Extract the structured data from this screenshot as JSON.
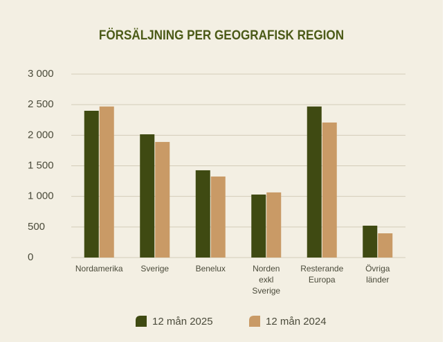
{
  "chart_data": {
    "type": "bar",
    "title": "FÖRSÄLJNING PER GEOGRAFISK REGION",
    "categories": [
      "Nordamerika",
      "Sverige",
      "Benelux",
      "Norden exkl Sverige",
      "Resterande Europa",
      "Övriga länder"
    ],
    "series": [
      {
        "name": "12 mån 2025",
        "color": "#3f4a12",
        "values": [
          2400,
          2015,
          1427,
          1030,
          2470,
          521
        ]
      },
      {
        "name": "12 mån 2024",
        "color": "#c99a66",
        "values": [
          2470,
          1890,
          1325,
          1065,
          2208,
          396
        ]
      }
    ],
    "ylim": [
      0,
      3000
    ],
    "yticks": [
      0,
      500,
      {
        "value": 1000,
        "label": "1 000"
      },
      {
        "value": 1500,
        "label": "1 500"
      },
      {
        "value": 2000,
        "label": "2 000"
      },
      {
        "value": 2500,
        "label": "2 500"
      },
      {
        "value": 3000,
        "label": "3 000"
      }
    ],
    "grid": true
  }
}
